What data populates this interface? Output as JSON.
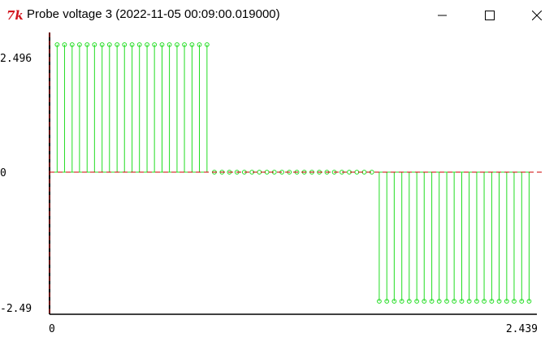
{
  "window": {
    "title": "Probe voltage 3 (2022-11-05 00:09:00.019000)",
    "app_icon": "tk-feather-icon",
    "controls": [
      "minimize-icon",
      "maximize-icon",
      "close-icon"
    ]
  },
  "colors": {
    "signal": "#22dd22",
    "axis": "#000000",
    "zero_line": "#cc0000",
    "background": "#ffffff"
  },
  "chart_data": {
    "type": "stem",
    "ytick_labels": [
      "2.496",
      "0",
      "-2.49"
    ],
    "xtick_labels": [
      "0",
      "2.439"
    ],
    "ylim": [
      -2.49,
      2.496
    ],
    "xlim": [
      0,
      2.439
    ],
    "x": [
      0.038,
      0.075,
      0.113,
      0.15,
      0.188,
      0.225,
      0.263,
      0.3,
      0.338,
      0.375,
      0.413,
      0.45,
      0.488,
      0.525,
      0.563,
      0.6,
      0.638,
      0.675,
      0.713,
      0.75,
      0.788,
      0.825,
      0.863,
      0.9,
      0.938,
      0.975,
      1.013,
      1.05,
      1.088,
      1.125,
      1.163,
      1.2,
      1.238,
      1.275,
      1.313,
      1.35,
      1.388,
      1.425,
      1.463,
      1.5,
      1.538,
      1.575,
      1.613,
      1.65,
      1.688,
      1.725,
      1.763,
      1.8,
      1.838,
      1.875,
      1.913,
      1.95,
      1.988,
      2.025,
      2.063,
      2.1,
      2.138,
      2.175,
      2.213,
      2.25,
      2.288,
      2.325,
      2.363,
      2.4
    ],
    "y": [
      2.496,
      2.496,
      2.496,
      2.496,
      2.496,
      2.496,
      2.496,
      2.496,
      2.496,
      2.496,
      2.496,
      2.496,
      2.496,
      2.496,
      2.496,
      2.496,
      2.496,
      2.496,
      2.496,
      2.496,
      2.496,
      0,
      0,
      0,
      0,
      0,
      0,
      0,
      0,
      0,
      0,
      0,
      0,
      0,
      0,
      0,
      0,
      0,
      0,
      0,
      0,
      0,
      0,
      -2.49,
      -2.49,
      -2.49,
      -2.49,
      -2.49,
      -2.49,
      -2.49,
      -2.49,
      -2.49,
      -2.49,
      -2.49,
      -2.49,
      -2.49,
      -2.49,
      -2.49,
      -2.49,
      -2.49,
      -2.49,
      -2.49,
      -2.49,
      -2.49
    ]
  }
}
